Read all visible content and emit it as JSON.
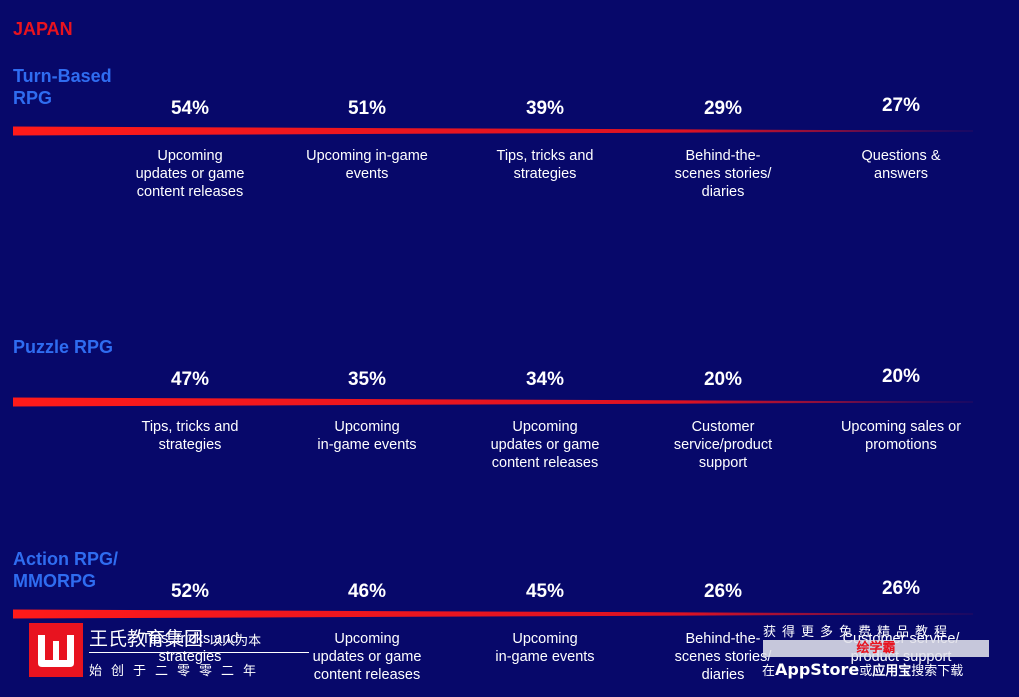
{
  "region": "JAPAN",
  "chart_data": [
    {
      "type": "bar",
      "genre": "Turn-Based RPG",
      "genre_lines": [
        "Turn-Based",
        "RPG"
      ],
      "series": [
        {
          "values": [
            54,
            51,
            39,
            29,
            27
          ],
          "labels": [
            "54%",
            "51%",
            "39%",
            "29%",
            "27%"
          ]
        }
      ],
      "categories": [
        [
          "Upcoming",
          "updates or game",
          "content releases"
        ],
        [
          "Upcoming in-game",
          "events"
        ],
        [
          "Tips, tricks and",
          "strategies"
        ],
        [
          "Behind-the-",
          "scenes stories/",
          "diaries"
        ],
        [
          "Questions &",
          "answers"
        ]
      ]
    },
    {
      "type": "bar",
      "genre": "Puzzle RPG",
      "genre_lines": [
        "Puzzle RPG"
      ],
      "series": [
        {
          "values": [
            47,
            35,
            34,
            20,
            20
          ],
          "labels": [
            "47%",
            "35%",
            "34%",
            "20%",
            "20%"
          ]
        }
      ],
      "categories": [
        [
          "Tips, tricks and",
          "strategies"
        ],
        [
          "Upcoming",
          "in-game events"
        ],
        [
          "Upcoming",
          "updates or game",
          "content releases"
        ],
        [
          "Customer",
          "service/product",
          "support"
        ],
        [
          "Upcoming sales or",
          "promotions"
        ]
      ]
    },
    {
      "type": "bar",
      "genre": "Action RPG/ MMORPG",
      "genre_lines": [
        "Action RPG/",
        "MMORPG"
      ],
      "series": [
        {
          "values": [
            52,
            46,
            45,
            26,
            26
          ],
          "labels": [
            "52%",
            "46%",
            "45%",
            "26%",
            "26%"
          ]
        }
      ],
      "categories": [
        [
          "Tips, tricks and",
          "strategies"
        ],
        [
          "Upcoming",
          "updates or game",
          "content releases"
        ],
        [
          "Upcoming",
          "in-game events"
        ],
        [
          "Behind-the-",
          "scenes stories/",
          "diaries"
        ],
        [
          "Customer service/",
          "product support"
        ]
      ]
    }
  ],
  "watermark": {
    "brand_name": "王氏教育集团",
    "brand_tagline": "以人为本",
    "since": "始创于二零零二年",
    "get_more": "获得更多免费精品教程",
    "app_name": "绘学霸",
    "search_prefix": "在",
    "appstore": "AppStore",
    "or": "或",
    "yingyongbao": "应用宝",
    "search_suffix": "搜索下载"
  },
  "colors": {
    "background": "#07086a",
    "accent_red": "#e8131f",
    "genre_blue": "#2f6cf0"
  }
}
